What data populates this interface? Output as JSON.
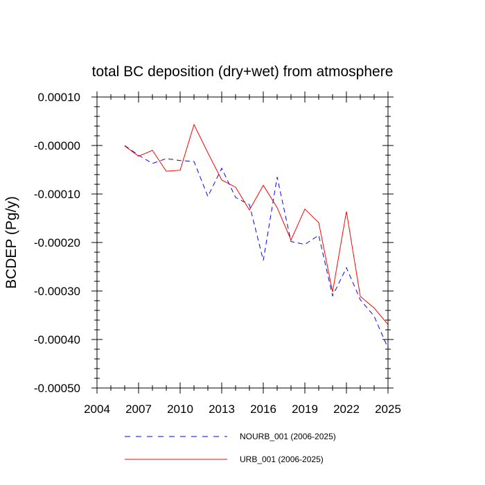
{
  "chart_data": {
    "type": "line",
    "title": "total BC deposition (dry+wet) from atmosphere",
    "xlabel": "",
    "ylabel": "BCDEP  (Pg/y)",
    "xlim": [
      2004,
      2025
    ],
    "ylim": [
      -0.0005,
      0.0001
    ],
    "x_ticks": [
      2004,
      2007,
      2010,
      2013,
      2016,
      2019,
      2022,
      2025
    ],
    "x_tick_labels": [
      "2004",
      "2007",
      "2010",
      "2013",
      "2016",
      "2019",
      "2022",
      "2025"
    ],
    "y_ticks": [
      0.0001,
      0.0,
      -0.0001,
      -0.0002,
      -0.0003,
      -0.0004,
      -0.0005
    ],
    "y_tick_labels": [
      "0.00010",
      "-0.00000",
      "-0.00010",
      "-0.00020",
      "-0.00030",
      "-0.00040",
      "-0.00050"
    ],
    "grid": false,
    "legend_position": "bottom",
    "x": [
      2006,
      2007,
      2008,
      2009,
      2010,
      2011,
      2012,
      2013,
      2014,
      2015,
      2016,
      2017,
      2018,
      2019,
      2020,
      2021,
      2022,
      2023,
      2024,
      2025
    ],
    "series": [
      {
        "name": "NOURB_001 (2006-2025)",
        "color": "#0000ff",
        "dash": "dashed",
        "values": [
          0.0,
          -2e-05,
          -3.7e-05,
          -2.7e-05,
          -3.1e-05,
          -3.3e-05,
          -0.000105,
          -4.7e-05,
          -0.000107,
          -0.000122,
          -0.000237,
          -6.5e-05,
          -0.000198,
          -0.000204,
          -0.000185,
          -0.00031,
          -0.000252,
          -0.000318,
          -0.000352,
          -0.000418
        ]
      },
      {
        "name": "URB_001 (2006-2025)",
        "color": "#ff0000",
        "dash": "solid",
        "values": [
          -1e-06,
          -2.2e-05,
          -1e-05,
          -5.3e-05,
          -5.1e-05,
          4.3e-05,
          -1.5e-05,
          -7.1e-05,
          -8.6e-05,
          -0.000133,
          -8.2e-05,
          -0.000128,
          -0.000195,
          -0.000131,
          -0.000159,
          -0.000302,
          -0.000136,
          -0.000311,
          -0.000335,
          -0.000369
        ]
      }
    ]
  }
}
